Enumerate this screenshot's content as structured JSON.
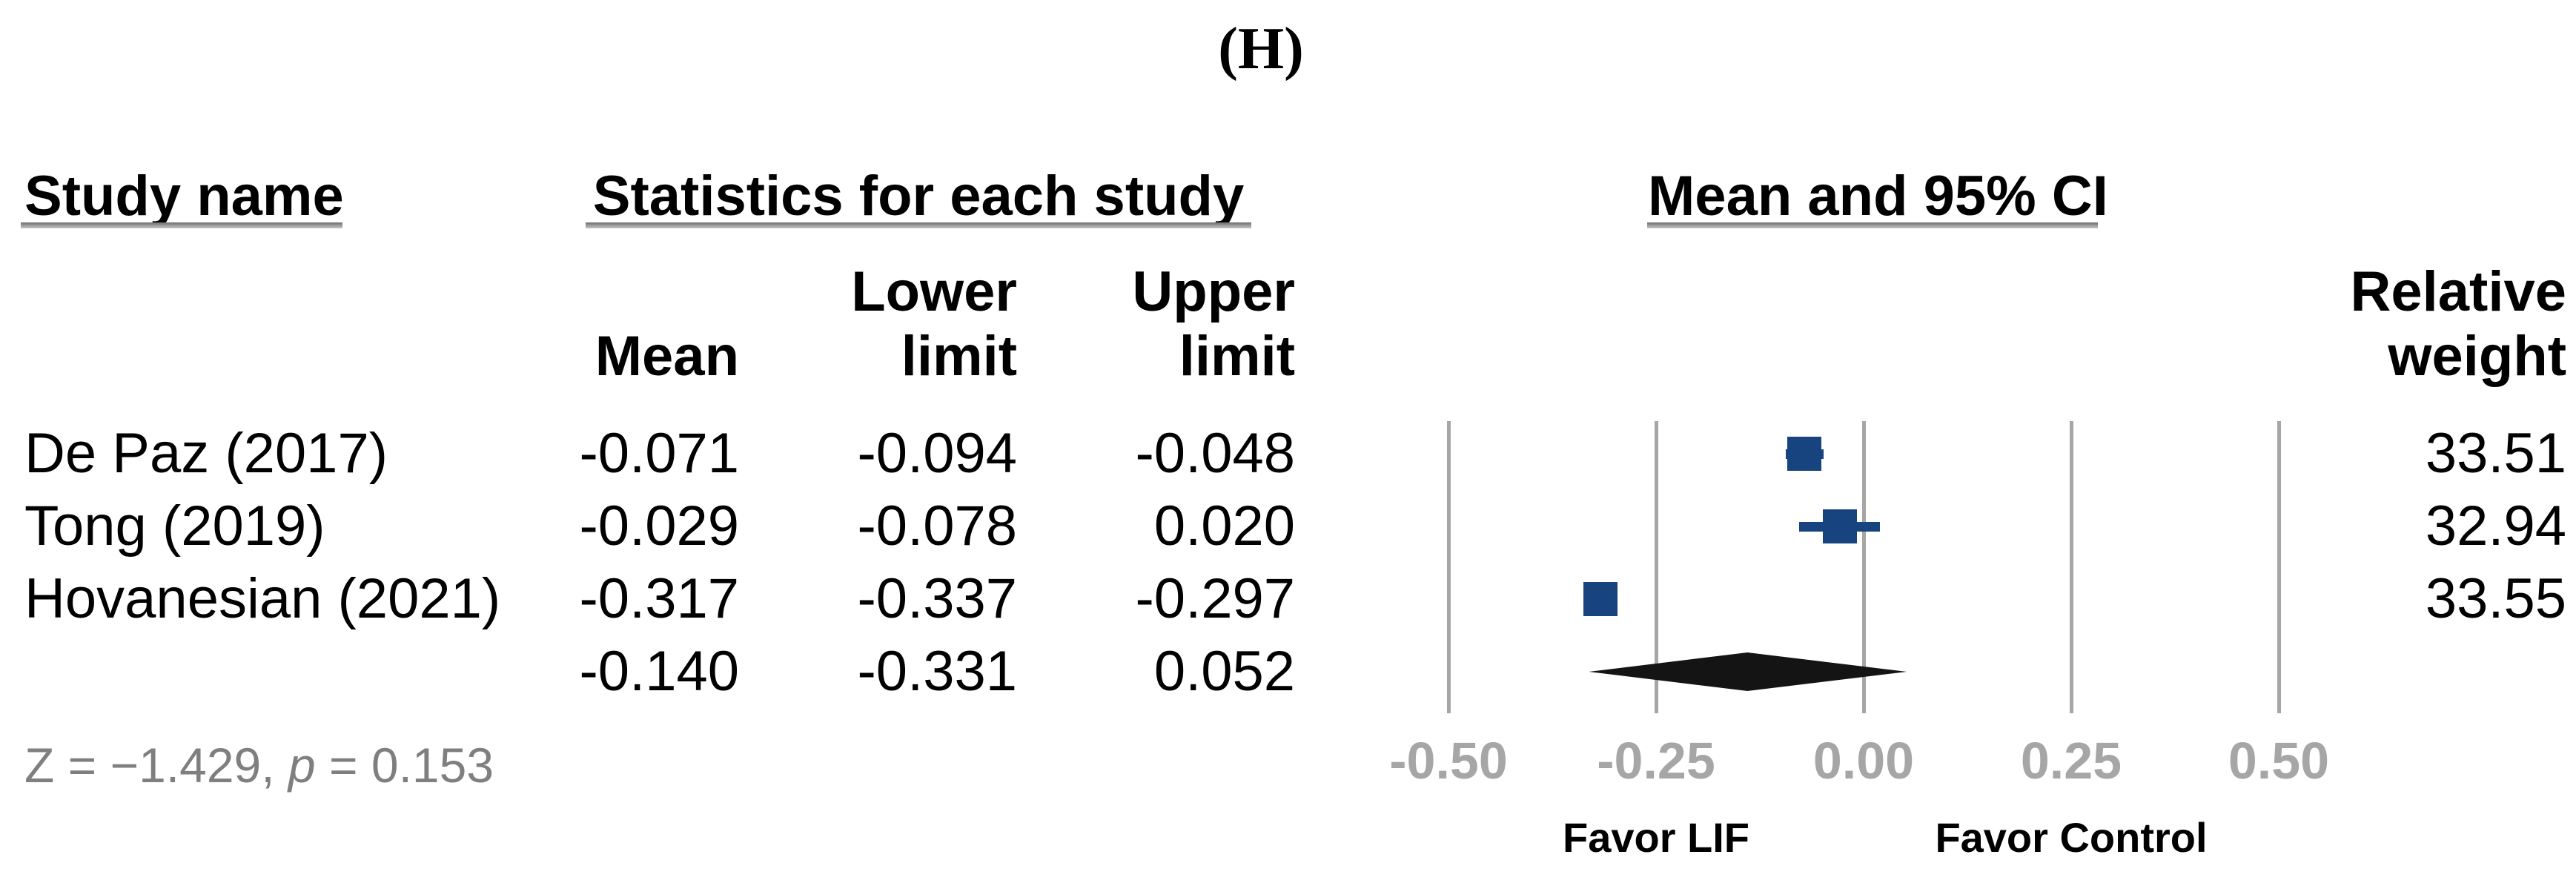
{
  "figure_label": "(H)",
  "columns": {
    "study_group": "Study name",
    "stats_group": "Statistics for each study",
    "ci_group": "Mean and 95% CI",
    "sub": {
      "mean": "Mean",
      "lower_line1": "Lower",
      "lower_line2": "limit",
      "upper_line1": "Upper",
      "upper_line2": "limit",
      "weight_line1": "Relative",
      "weight_line2": "weight"
    }
  },
  "rows": [
    {
      "study": "De Paz (2017)",
      "mean": "-0.071",
      "lower": "-0.094",
      "upper": "-0.048",
      "weight": "33.51"
    },
    {
      "study": "Tong (2019)",
      "mean": "-0.029",
      "lower": "-0.078",
      "upper": "0.020",
      "weight": "32.94"
    },
    {
      "study": "Hovanesian (2021)",
      "mean": "-0.317",
      "lower": "-0.337",
      "upper": "-0.297",
      "weight": "33.55"
    },
    {
      "study": "",
      "mean": "-0.140",
      "lower": "-0.331",
      "upper": "0.052",
      "weight": ""
    }
  ],
  "note": {
    "prefix": "Z = −1.429, ",
    "p": "p",
    "suffix": " = 0.153"
  },
  "chart_data": {
    "type": "forest",
    "title": "(H)",
    "x_ticks": [
      -0.5,
      -0.25,
      0.0,
      0.25,
      0.5
    ],
    "x_tick_labels": [
      "-0.50",
      "-0.25",
      "0.00",
      "0.25",
      "0.50"
    ],
    "x_range": [
      -0.5,
      0.5
    ],
    "grid": true,
    "studies": [
      {
        "name": "De Paz (2017)",
        "mean": -0.071,
        "lower": -0.094,
        "upper": -0.048,
        "relative_weight": 33.51
      },
      {
        "name": "Tong (2019)",
        "mean": -0.029,
        "lower": -0.078,
        "upper": 0.02,
        "relative_weight": 32.94
      },
      {
        "name": "Hovanesian (2021)",
        "mean": -0.317,
        "lower": -0.337,
        "upper": -0.297,
        "relative_weight": 33.55
      }
    ],
    "overall": {
      "mean": -0.14,
      "lower": -0.331,
      "upper": 0.052,
      "z": -1.429,
      "p": 0.153
    },
    "axis_footer_left": "Favor LIF",
    "axis_footer_right": "Favor Control",
    "colors": {
      "marker": "#17437e",
      "diamond": "#141414",
      "grid": "#a6a6a6",
      "tick_label": "#a6a6a6",
      "note": "#7f7f7f"
    }
  }
}
